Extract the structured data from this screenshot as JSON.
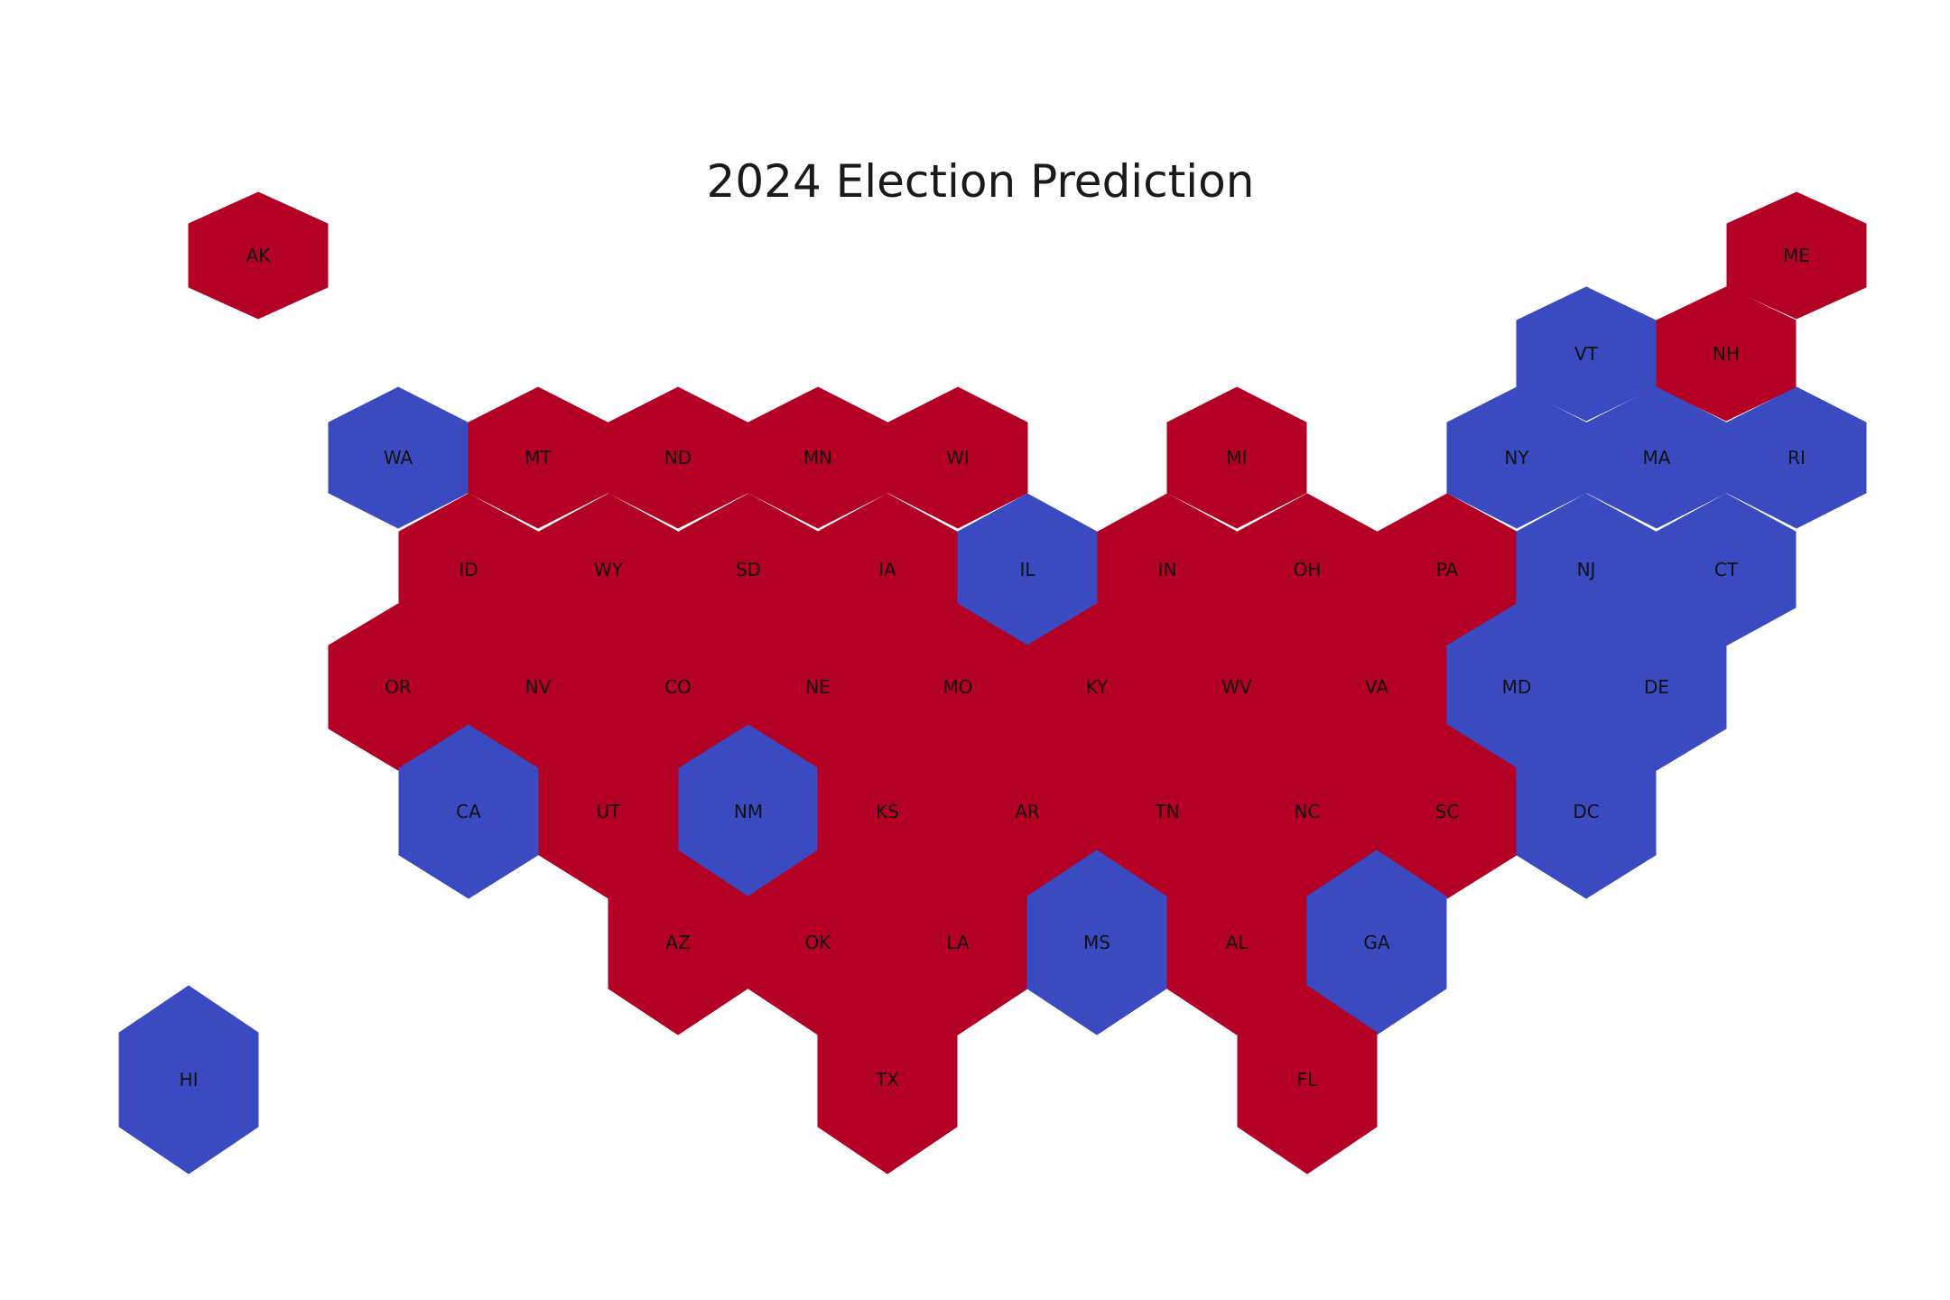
{
  "title": "2024 Election Prediction",
  "colors": {
    "republican": "#b30024",
    "democrat": "#3a4bc1",
    "background": "#ffffff",
    "label": "#111111"
  },
  "states": [
    {
      "code": "AK",
      "party": "republican"
    },
    {
      "code": "ME",
      "party": "republican"
    },
    {
      "code": "VT",
      "party": "democrat"
    },
    {
      "code": "NH",
      "party": "republican"
    },
    {
      "code": "WA",
      "party": "democrat"
    },
    {
      "code": "MT",
      "party": "republican"
    },
    {
      "code": "ND",
      "party": "republican"
    },
    {
      "code": "MN",
      "party": "republican"
    },
    {
      "code": "WI",
      "party": "republican"
    },
    {
      "code": "MI",
      "party": "republican"
    },
    {
      "code": "NY",
      "party": "democrat"
    },
    {
      "code": "MA",
      "party": "democrat"
    },
    {
      "code": "RI",
      "party": "democrat"
    },
    {
      "code": "ID",
      "party": "republican"
    },
    {
      "code": "WY",
      "party": "republican"
    },
    {
      "code": "SD",
      "party": "republican"
    },
    {
      "code": "IA",
      "party": "republican"
    },
    {
      "code": "IL",
      "party": "democrat"
    },
    {
      "code": "IN",
      "party": "republican"
    },
    {
      "code": "OH",
      "party": "republican"
    },
    {
      "code": "PA",
      "party": "republican"
    },
    {
      "code": "NJ",
      "party": "democrat"
    },
    {
      "code": "CT",
      "party": "democrat"
    },
    {
      "code": "OR",
      "party": "republican"
    },
    {
      "code": "NV",
      "party": "republican"
    },
    {
      "code": "CO",
      "party": "republican"
    },
    {
      "code": "NE",
      "party": "republican"
    },
    {
      "code": "MO",
      "party": "republican"
    },
    {
      "code": "KY",
      "party": "republican"
    },
    {
      "code": "WV",
      "party": "republican"
    },
    {
      "code": "VA",
      "party": "republican"
    },
    {
      "code": "MD",
      "party": "democrat"
    },
    {
      "code": "DE",
      "party": "democrat"
    },
    {
      "code": "CA",
      "party": "democrat"
    },
    {
      "code": "UT",
      "party": "republican"
    },
    {
      "code": "NM",
      "party": "democrat"
    },
    {
      "code": "KS",
      "party": "republican"
    },
    {
      "code": "AR",
      "party": "republican"
    },
    {
      "code": "TN",
      "party": "republican"
    },
    {
      "code": "NC",
      "party": "republican"
    },
    {
      "code": "SC",
      "party": "republican"
    },
    {
      "code": "DC",
      "party": "democrat"
    },
    {
      "code": "AZ",
      "party": "republican"
    },
    {
      "code": "OK",
      "party": "republican"
    },
    {
      "code": "LA",
      "party": "republican"
    },
    {
      "code": "MS",
      "party": "democrat"
    },
    {
      "code": "AL",
      "party": "republican"
    },
    {
      "code": "GA",
      "party": "democrat"
    },
    {
      "code": "HI",
      "party": "democrat"
    },
    {
      "code": "TX",
      "party": "republican"
    },
    {
      "code": "FL",
      "party": "republican"
    }
  ]
}
